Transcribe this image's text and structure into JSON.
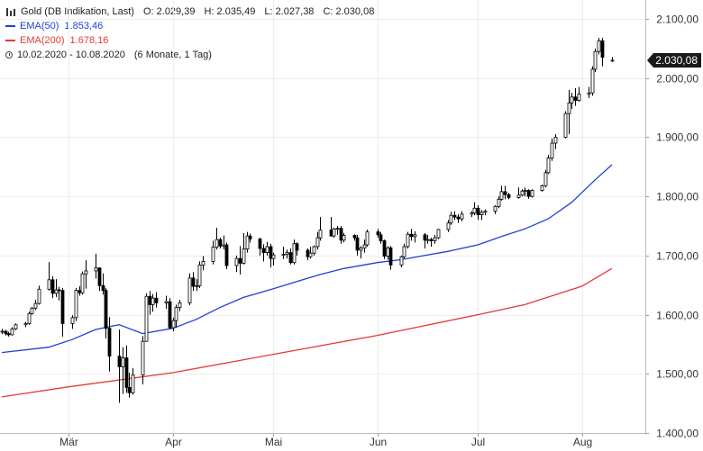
{
  "legend": {
    "instrument": "Gold (DB Indikation, Last)",
    "open_label": "O:",
    "open": "2.029,39",
    "high_label": "H:",
    "high": "2.035,49",
    "low_label": "L:",
    "low": "2.027,38",
    "close_label": "C:",
    "close": "2.030,08",
    "ema50_label": "EMA(50)",
    "ema50_value": "1.853,46",
    "ema200_label": "EMA(200)",
    "ema200_value": "1.678,16",
    "range": "10.02.2020 - 10.08.2020",
    "range_note": "(6 Monate, 1 Tag)"
  },
  "current_price_label": "2.030,08",
  "colors": {
    "ema50": "#1f3fd6",
    "ema200": "#e53935",
    "candle": "#000000",
    "grid": "#eeeeee",
    "price_tag": "#1a1a1a"
  },
  "chart_data": {
    "type": "candlestick",
    "title": "Gold (DB Indikation, Last)",
    "ylim": [
      1390,
      2130
    ],
    "y_ticks": [
      1400,
      1500,
      1600,
      1700,
      1800,
      1900,
      2000,
      2100
    ],
    "y_tick_labels": [
      "1.400,00",
      "1.500,00",
      "1.600,00",
      "1.700,00",
      "1.800,00",
      "1.900,00",
      "2.000,00",
      "2.100,00"
    ],
    "x_ticks": [
      {
        "date": "2020-03-01",
        "label": "Mär"
      },
      {
        "date": "2020-04-01",
        "label": "Apr"
      },
      {
        "date": "2020-05-01",
        "label": "Mai"
      },
      {
        "date": "2020-06-01",
        "label": "Jun"
      },
      {
        "date": "2020-07-01",
        "label": "Jul"
      },
      {
        "date": "2020-08-01",
        "label": "Aug"
      }
    ],
    "x_range": [
      "2020-02-10",
      "2020-08-10"
    ],
    "ohlc": [
      [
        "2020-02-10",
        1571,
        1576,
        1567,
        1572
      ],
      [
        "2020-02-11",
        1572,
        1574,
        1565,
        1568
      ],
      [
        "2020-02-12",
        1568,
        1571,
        1563,
        1566
      ],
      [
        "2020-02-13",
        1566,
        1579,
        1565,
        1576
      ],
      [
        "2020-02-14",
        1576,
        1585,
        1574,
        1583
      ],
      [
        "2020-02-17",
        1583,
        1588,
        1579,
        1585
      ],
      [
        "2020-02-18",
        1585,
        1605,
        1583,
        1602
      ],
      [
        "2020-02-19",
        1602,
        1613,
        1600,
        1611
      ],
      [
        "2020-02-20",
        1611,
        1625,
        1608,
        1619
      ],
      [
        "2020-02-21",
        1619,
        1649,
        1617,
        1643
      ],
      [
        "2020-02-24",
        1643,
        1689,
        1641,
        1659
      ],
      [
        "2020-02-25",
        1659,
        1665,
        1628,
        1636
      ],
      [
        "2020-02-26",
        1636,
        1660,
        1630,
        1642
      ],
      [
        "2020-02-27",
        1642,
        1647,
        1624,
        1641
      ],
      [
        "2020-02-28",
        1641,
        1645,
        1563,
        1585
      ],
      [
        "2020-03-02",
        1585,
        1599,
        1576,
        1595
      ],
      [
        "2020-03-03",
        1595,
        1645,
        1589,
        1641
      ],
      [
        "2020-03-04",
        1641,
        1648,
        1632,
        1637
      ],
      [
        "2020-03-05",
        1637,
        1673,
        1634,
        1669
      ],
      [
        "2020-03-06",
        1669,
        1692,
        1644,
        1674
      ],
      [
        "2020-03-09",
        1674,
        1703,
        1661,
        1679
      ],
      [
        "2020-03-10",
        1679,
        1680,
        1640,
        1649
      ],
      [
        "2020-03-11",
        1649,
        1670,
        1634,
        1641
      ],
      [
        "2020-03-12",
        1641,
        1645,
        1560,
        1577
      ],
      [
        "2020-03-13",
        1577,
        1596,
        1504,
        1530
      ],
      [
        "2020-03-16",
        1530,
        1575,
        1451,
        1512
      ],
      [
        "2020-03-17",
        1512,
        1545,
        1466,
        1527
      ],
      [
        "2020-03-18",
        1527,
        1548,
        1468,
        1477
      ],
      [
        "2020-03-19",
        1477,
        1502,
        1460,
        1468
      ],
      [
        "2020-03-20",
        1468,
        1510,
        1465,
        1498
      ],
      [
        "2020-03-23",
        1498,
        1564,
        1482,
        1555
      ],
      [
        "2020-03-24",
        1555,
        1636,
        1554,
        1631
      ],
      [
        "2020-03-25",
        1631,
        1640,
        1600,
        1617
      ],
      [
        "2020-03-26",
        1617,
        1635,
        1605,
        1628
      ],
      [
        "2020-03-27",
        1628,
        1638,
        1612,
        1620
      ],
      [
        "2020-03-30",
        1620,
        1632,
        1610,
        1622
      ],
      [
        "2020-03-31",
        1622,
        1628,
        1576,
        1578
      ],
      [
        "2020-04-01",
        1578,
        1595,
        1572,
        1590
      ],
      [
        "2020-04-02",
        1590,
        1617,
        1578,
        1612
      ],
      [
        "2020-04-03",
        1612,
        1625,
        1606,
        1620
      ],
      [
        "2020-04-06",
        1620,
        1670,
        1616,
        1662
      ],
      [
        "2020-04-07",
        1662,
        1672,
        1640,
        1648
      ],
      [
        "2020-04-08",
        1648,
        1660,
        1640,
        1649
      ],
      [
        "2020-04-09",
        1649,
        1690,
        1645,
        1684
      ],
      [
        "2020-04-10",
        1684,
        1699,
        1675,
        1690
      ],
      [
        "2020-04-13",
        1690,
        1725,
        1685,
        1714
      ],
      [
        "2020-04-14",
        1714,
        1747,
        1710,
        1727
      ],
      [
        "2020-04-15",
        1727,
        1730,
        1712,
        1716
      ],
      [
        "2020-04-16",
        1716,
        1734,
        1710,
        1718
      ],
      [
        "2020-04-17",
        1718,
        1722,
        1677,
        1683
      ],
      [
        "2020-04-20",
        1683,
        1700,
        1672,
        1695
      ],
      [
        "2020-04-21",
        1695,
        1716,
        1668,
        1687
      ],
      [
        "2020-04-22",
        1687,
        1738,
        1685,
        1711
      ],
      [
        "2020-04-23",
        1711,
        1740,
        1705,
        1733
      ],
      [
        "2020-04-24",
        1733,
        1737,
        1722,
        1728
      ],
      [
        "2020-04-27",
        1728,
        1730,
        1700,
        1712
      ],
      [
        "2020-04-28",
        1712,
        1719,
        1690,
        1705
      ],
      [
        "2020-04-29",
        1705,
        1723,
        1700,
        1715
      ],
      [
        "2020-04-30",
        1715,
        1720,
        1680,
        1695
      ],
      [
        "2020-05-01",
        1695,
        1705,
        1683,
        1701
      ],
      [
        "2020-05-04",
        1701,
        1715,
        1694,
        1702
      ],
      [
        "2020-05-05",
        1702,
        1710,
        1695,
        1705
      ],
      [
        "2020-05-06",
        1705,
        1712,
        1685,
        1688
      ],
      [
        "2020-05-07",
        1688,
        1727,
        1685,
        1720
      ],
      [
        "2020-05-08",
        1720,
        1722,
        1700,
        1709
      ],
      [
        "2020-05-11",
        1709,
        1712,
        1692,
        1698
      ],
      [
        "2020-05-12",
        1698,
        1715,
        1695,
        1704
      ],
      [
        "2020-05-13",
        1704,
        1717,
        1700,
        1715
      ],
      [
        "2020-05-14",
        1715,
        1740,
        1710,
        1730
      ],
      [
        "2020-05-15",
        1730,
        1765,
        1725,
        1743
      ],
      [
        "2020-05-18",
        1743,
        1765,
        1732,
        1733
      ],
      [
        "2020-05-19",
        1733,
        1747,
        1730,
        1745
      ],
      [
        "2020-05-20",
        1745,
        1750,
        1735,
        1746
      ],
      [
        "2020-05-21",
        1746,
        1750,
        1720,
        1726
      ],
      [
        "2020-05-22",
        1726,
        1738,
        1722,
        1734
      ],
      [
        "2020-05-25",
        1734,
        1736,
        1725,
        1730
      ],
      [
        "2020-05-26",
        1730,
        1735,
        1700,
        1709
      ],
      [
        "2020-05-27",
        1709,
        1716,
        1695,
        1713
      ],
      [
        "2020-05-28",
        1713,
        1727,
        1705,
        1718
      ],
      [
        "2020-05-29",
        1718,
        1744,
        1715,
        1740
      ],
      [
        "2020-06-01",
        1740,
        1745,
        1730,
        1735
      ],
      [
        "2020-06-02",
        1735,
        1740,
        1720,
        1725
      ],
      [
        "2020-06-03",
        1725,
        1727,
        1694,
        1699
      ],
      [
        "2020-06-04",
        1699,
        1716,
        1693,
        1713
      ],
      [
        "2020-06-05",
        1713,
        1716,
        1676,
        1684
      ],
      [
        "2020-06-08",
        1684,
        1700,
        1680,
        1698
      ],
      [
        "2020-06-09",
        1698,
        1720,
        1695,
        1715
      ],
      [
        "2020-06-10",
        1715,
        1740,
        1712,
        1736
      ],
      [
        "2020-06-11",
        1736,
        1745,
        1725,
        1732
      ],
      [
        "2020-06-12",
        1732,
        1741,
        1722,
        1735
      ],
      [
        "2020-06-15",
        1735,
        1738,
        1712,
        1726
      ],
      [
        "2020-06-16",
        1726,
        1735,
        1720,
        1727
      ],
      [
        "2020-06-17",
        1727,
        1730,
        1715,
        1725
      ],
      [
        "2020-06-18",
        1725,
        1735,
        1720,
        1730
      ],
      [
        "2020-06-19",
        1730,
        1745,
        1728,
        1744
      ],
      [
        "2020-06-22",
        1744,
        1760,
        1740,
        1755
      ],
      [
        "2020-06-23",
        1755,
        1774,
        1752,
        1768
      ],
      [
        "2020-06-24",
        1768,
        1775,
        1760,
        1765
      ],
      [
        "2020-06-25",
        1765,
        1770,
        1755,
        1762
      ],
      [
        "2020-06-26",
        1762,
        1775,
        1758,
        1770
      ],
      [
        "2020-06-29",
        1770,
        1775,
        1765,
        1772
      ],
      [
        "2020-06-30",
        1772,
        1790,
        1768,
        1780
      ],
      [
        "2020-07-01",
        1780,
        1785,
        1760,
        1769
      ],
      [
        "2020-07-02",
        1769,
        1777,
        1760,
        1773
      ],
      [
        "2020-07-03",
        1773,
        1778,
        1768,
        1775
      ],
      [
        "2020-07-06",
        1775,
        1785,
        1770,
        1783
      ],
      [
        "2020-07-07",
        1783,
        1800,
        1780,
        1795
      ],
      [
        "2020-07-08",
        1795,
        1818,
        1793,
        1808
      ],
      [
        "2020-07-09",
        1808,
        1818,
        1795,
        1803
      ],
      [
        "2020-07-10",
        1803,
        1806,
        1795,
        1798
      ],
      [
        "2020-07-13",
        1798,
        1815,
        1796,
        1802
      ],
      [
        "2020-07-14",
        1802,
        1812,
        1800,
        1809
      ],
      [
        "2020-07-15",
        1809,
        1815,
        1800,
        1810
      ],
      [
        "2020-07-16",
        1810,
        1812,
        1796,
        1800
      ],
      [
        "2020-07-17",
        1800,
        1812,
        1798,
        1810
      ],
      [
        "2020-07-20",
        1810,
        1820,
        1808,
        1818
      ],
      [
        "2020-07-21",
        1818,
        1845,
        1815,
        1840
      ],
      [
        "2020-07-22",
        1840,
        1870,
        1838,
        1865
      ],
      [
        "2020-07-23",
        1865,
        1898,
        1860,
        1890
      ],
      [
        "2020-07-24",
        1890,
        1905,
        1880,
        1900
      ],
      [
        "2020-07-27",
        1900,
        1944,
        1898,
        1940
      ],
      [
        "2020-07-28",
        1940,
        1980,
        1905,
        1958
      ],
      [
        "2020-07-29",
        1958,
        1975,
        1948,
        1968
      ],
      [
        "2020-07-30",
        1968,
        1983,
        1953,
        1962
      ],
      [
        "2020-07-31",
        1962,
        1985,
        1960,
        1973
      ],
      [
        "2020-08-03",
        1973,
        1985,
        1966,
        1975
      ],
      [
        "2020-08-04",
        1975,
        2020,
        1970,
        2015
      ],
      [
        "2020-08-05",
        2015,
        2050,
        2010,
        2045
      ],
      [
        "2020-08-06",
        2045,
        2068,
        2040,
        2063
      ],
      [
        "2020-08-07",
        2063,
        2068,
        2020,
        2035
      ],
      [
        "2020-08-10",
        2029.39,
        2035.49,
        2027.38,
        2030.08
      ]
    ],
    "series": [
      {
        "name": "EMA(50)",
        "color": "#1f3fd6",
        "points": [
          [
            "2020-02-10",
            1536
          ],
          [
            "2020-02-24",
            1545
          ],
          [
            "2020-03-02",
            1558
          ],
          [
            "2020-03-09",
            1575
          ],
          [
            "2020-03-16",
            1583
          ],
          [
            "2020-03-23",
            1568
          ],
          [
            "2020-04-01",
            1577
          ],
          [
            "2020-04-08",
            1592
          ],
          [
            "2020-04-15",
            1612
          ],
          [
            "2020-04-22",
            1629
          ],
          [
            "2020-05-01",
            1644
          ],
          [
            "2020-05-08",
            1656
          ],
          [
            "2020-05-15",
            1668
          ],
          [
            "2020-05-22",
            1678
          ],
          [
            "2020-06-01",
            1688
          ],
          [
            "2020-06-08",
            1693
          ],
          [
            "2020-06-15",
            1700
          ],
          [
            "2020-06-22",
            1707
          ],
          [
            "2020-07-01",
            1718
          ],
          [
            "2020-07-08",
            1732
          ],
          [
            "2020-07-15",
            1745
          ],
          [
            "2020-07-22",
            1762
          ],
          [
            "2020-07-29",
            1790
          ],
          [
            "2020-08-05",
            1828
          ],
          [
            "2020-08-10",
            1853.46
          ]
        ]
      },
      {
        "name": "EMA(200)",
        "color": "#e53935",
        "points": [
          [
            "2020-02-10",
            1461
          ],
          [
            "2020-03-01",
            1478
          ],
          [
            "2020-04-01",
            1502
          ],
          [
            "2020-05-01",
            1533
          ],
          [
            "2020-06-01",
            1565
          ],
          [
            "2020-07-01",
            1600
          ],
          [
            "2020-07-15",
            1617
          ],
          [
            "2020-08-01",
            1648
          ],
          [
            "2020-08-10",
            1678.16
          ]
        ]
      }
    ]
  }
}
